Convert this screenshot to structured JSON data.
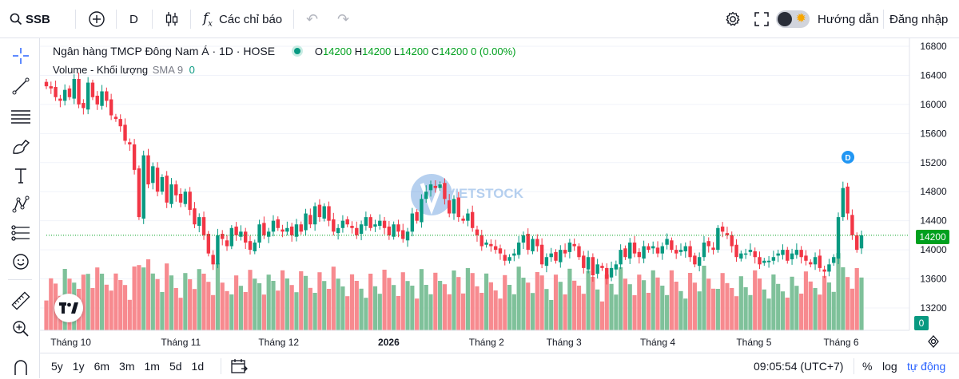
{
  "topbar": {
    "symbol": "SSB",
    "interval": "D",
    "indicators_label": "Các chỉ báo",
    "guide_label": "Hướng dẫn",
    "login_label": "Đăng nhập"
  },
  "legend": {
    "title": "Ngân hàng TMCP Đông Nam Á · 1D · HOSE",
    "o_label": "O",
    "o_value": "14200",
    "h_label": "H",
    "h_value": "14200",
    "l_label": "L",
    "l_value": "14200",
    "c_label": "C",
    "c_value": "14200",
    "change": "0 (0.00%)",
    "volume_label": "Volume - Khối lượng",
    "sma_label": "SMA 9",
    "sma_value": "0"
  },
  "watermark": "VIETSTOCK",
  "price_axis": {
    "ticks": [
      "16800",
      "16400",
      "16000",
      "15600",
      "15200",
      "14800",
      "14400",
      "14000",
      "13600",
      "13200"
    ],
    "last_price_tag": "14200",
    "volume_tag": "0"
  },
  "time_axis": {
    "ticks": [
      "Tháng 10",
      "Tháng 11",
      "Tháng 12",
      "2026",
      "Tháng 2",
      "Tháng 3",
      "Tháng 4",
      "Tháng 5",
      "Tháng 6"
    ]
  },
  "event_marker": "D",
  "bottombar": {
    "ranges": [
      "5y",
      "1y",
      "6m",
      "3m",
      "1m",
      "5d",
      "1d"
    ],
    "time": "09:05:54 (UTC+7)",
    "percent": "%",
    "log": "log",
    "auto": "tự động"
  },
  "colors": {
    "up": "#089981",
    "down": "#f23645",
    "vol_up": "#7fc19a",
    "vol_down": "#f78a8f",
    "accent": "#2962ff",
    "last_price": "#00a01e"
  },
  "chart_data": {
    "type": "candlestick",
    "ylim": [
      13000,
      16900
    ],
    "x_ticks": [
      "Tháng 10",
      "Tháng 11",
      "Tháng 12",
      "2026",
      "Tháng 2",
      "Tháng 3",
      "Tháng 4",
      "Tháng 5",
      "Tháng 6"
    ],
    "last_close": 14200,
    "closes": [
      16250,
      16220,
      16100,
      16050,
      16200,
      16100,
      16350,
      16000,
      15950,
      16300,
      16100,
      16000,
      16180,
      16050,
      15850,
      15800,
      15700,
      15500,
      15450,
      15100,
      14450,
      15300,
      14900,
      15150,
      14800,
      15000,
      14650,
      14900,
      14750,
      14650,
      14800,
      14550,
      14350,
      14450,
      14200,
      13950,
      13800,
      14200,
      14150,
      14050,
      14300,
      14200,
      14250,
      14100,
      14000,
      14100,
      14350,
      14200,
      14250,
      14400,
      14300,
      14250,
      14300,
      14200,
      14350,
      14250,
      14500,
      14350,
      14600,
      14450,
      14600,
      14400,
      14250,
      14300,
      14400,
      14350,
      14300,
      14200,
      14350,
      14450,
      14300,
      14350,
      14400,
      14300,
      14200,
      14350,
      14250,
      14150,
      14250,
      14500,
      14400,
      14700,
      14800,
      14900,
      14850,
      14900,
      14700,
      14500,
      14700,
      14450,
      14400,
      14500,
      14300,
      14200,
      14050,
      14100,
      14050,
      14000,
      13950,
      13850,
      13900,
      13950,
      14100,
      14200,
      14000,
      14150,
      14050,
      13800,
      13900,
      13950,
      13850,
      14000,
      13950,
      14100,
      14050,
      13900,
      13750,
      13900,
      13650,
      13800,
      13750,
      13600,
      13750,
      13800,
      14000,
      13900,
      14100,
      13950,
      13900,
      14050,
      14000,
      14050,
      13950,
      14050,
      14150,
      14000,
      13950,
      14000,
      14050,
      13900,
      13800,
      13900,
      14100,
      14050,
      14000,
      14300,
      14250,
      14200,
      14050,
      13900,
      13950,
      13950,
      14000,
      13900,
      13800,
      13850,
      13850,
      13900,
      13950,
      14000,
      13850,
      13950,
      14000,
      13900,
      13850,
      13800,
      13900,
      13750,
      13700,
      13800,
      13900,
      14450,
      14850,
      14500,
      14200,
      14000,
      14200
    ]
  }
}
